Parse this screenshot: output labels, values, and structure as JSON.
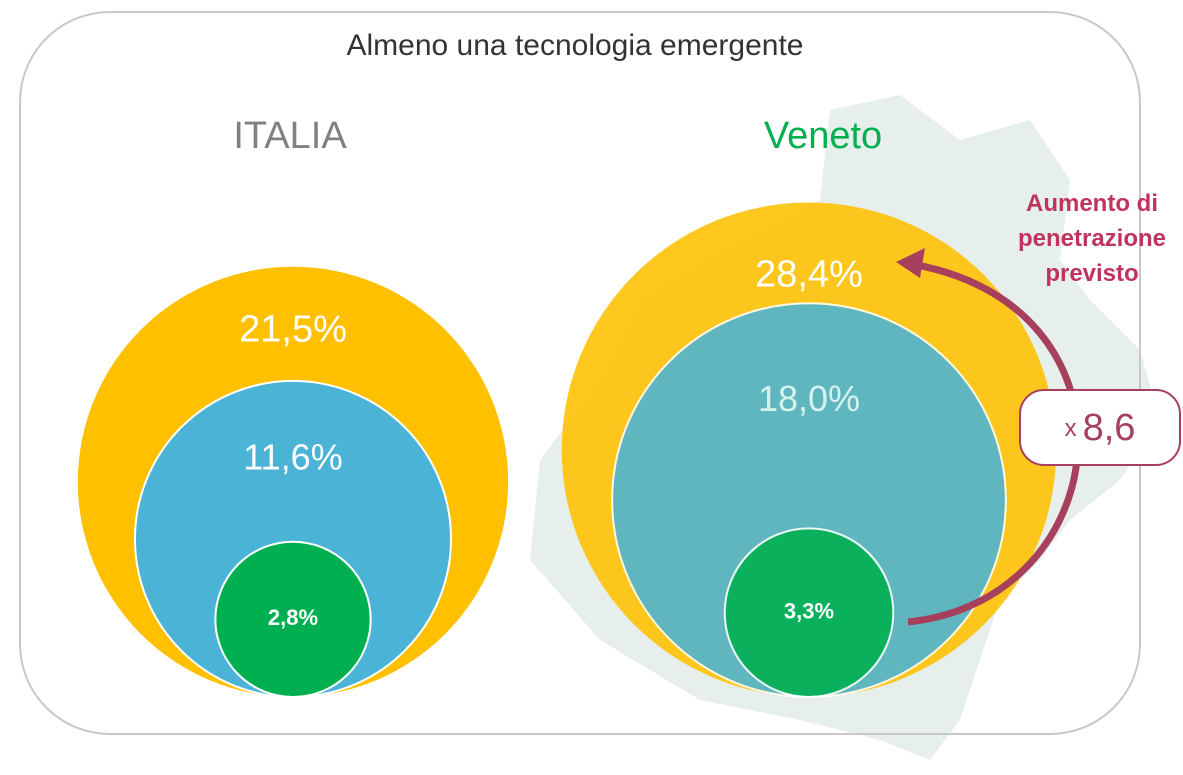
{
  "chart_data": {
    "type": "nested_circles",
    "title": "Almeno una tecnologia emergente",
    "groups": [
      "ITALIA",
      "Veneto"
    ],
    "series": [
      {
        "color": "#ffc000",
        "values": [
          21.5,
          28.4
        ],
        "value_labels": [
          "21,5%",
          "28,4%"
        ]
      },
      {
        "color": "#4bb4d6",
        "values": [
          11.6,
          18.0
        ],
        "value_labels": [
          "11,6%",
          "18,0%"
        ]
      },
      {
        "color": "#00b050",
        "values": [
          2.8,
          3.3
        ],
        "value_labels": [
          "2,8%",
          "3,3%"
        ]
      }
    ],
    "annotation": "Aumento di penetrazione previsto",
    "ratio_prefix": "x",
    "ratio": "8,6"
  }
}
